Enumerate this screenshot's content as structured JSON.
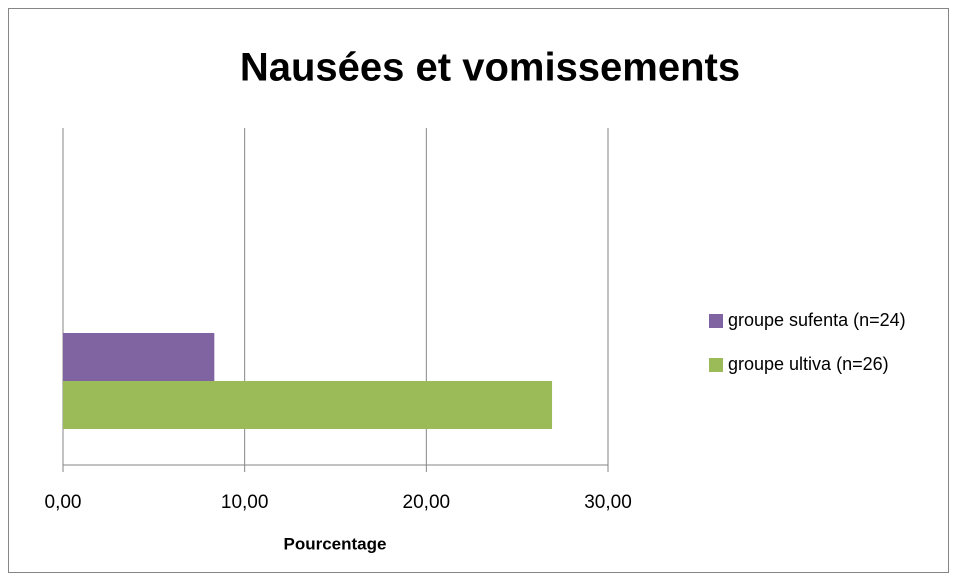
{
  "chart_data": {
    "type": "bar",
    "orientation": "horizontal",
    "title": "Nausées et vomissements",
    "x_label": "Pourcentage",
    "categories": [
      null
    ],
    "series": [
      {
        "name": "groupe sufenta (n=24)",
        "color": "#8064a2",
        "values": [
          8.33
        ]
      },
      {
        "name": "groupe ultiva (n=26)",
        "color": "#9bbb59",
        "values": [
          26.92
        ]
      }
    ],
    "xlim": [
      0,
      30
    ],
    "xticks": [
      {
        "value": 0,
        "label": "0,00"
      },
      {
        "value": 10,
        "label": "10,00"
      },
      {
        "value": 20,
        "label": "20,00"
      },
      {
        "value": 30,
        "label": "30,00"
      }
    ],
    "grid": true,
    "legend": "right"
  }
}
